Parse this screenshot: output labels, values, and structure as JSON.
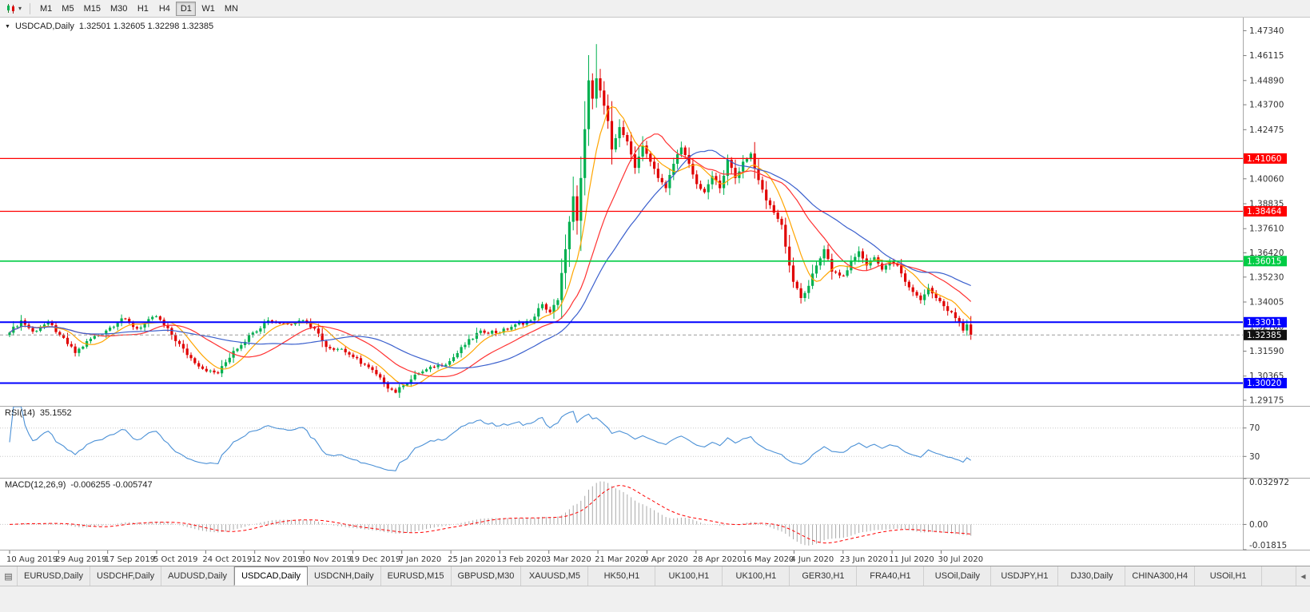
{
  "icons": {
    "chart_menu": "▼",
    "caret_down": "▾",
    "window_list": "▤",
    "tab_scroll_left": "◀",
    "chart_type": "candlestick-chart"
  },
  "toolbar": {
    "periods": [
      "M1",
      "M5",
      "M15",
      "M30",
      "H1",
      "H4",
      "D1",
      "W1",
      "MN"
    ],
    "active_period": "D1"
  },
  "chart": {
    "title": "USDCAD,Daily",
    "ohlc": "1.32501 1.32605 1.32298 1.32385",
    "rsi_label": "RSI(14)",
    "rsi_value": "35.1552",
    "macd_label": "MACD(12,26,9)",
    "macd_value": "-0.006255 -0.005747"
  },
  "levels": [
    {
      "price": 1.4106,
      "label": "1.41060",
      "color": "#ff0000",
      "width": 1.3
    },
    {
      "price": 1.38464,
      "label": "1.38464",
      "color": "#ff0000",
      "width": 1.3
    },
    {
      "price": 1.36015,
      "label": "1.36015",
      "color": "#00cc44",
      "width": 1.6
    },
    {
      "price": 1.33011,
      "label": "1.33011",
      "color": "#0000ff",
      "width": 2
    },
    {
      "price": 1.3002,
      "label": "1.30020",
      "color": "#0000ff",
      "width": 2
    }
  ],
  "current_price": {
    "value": 1.32385,
    "label": "1.32385",
    "color": "#111111"
  },
  "axis": {
    "price_labels": [
      "1.47340",
      "1.46115",
      "1.44890",
      "1.43700",
      "1.42475",
      "1.40060",
      "1.38835",
      "1.37610",
      "1.36420",
      "1.35230",
      "1.34005",
      "1.32780",
      "1.31590",
      "1.30365",
      "1.29175"
    ],
    "rsi_labels": [
      "70",
      "30"
    ],
    "macd_labels": [
      "0.032972",
      "0.00",
      "-0.01815"
    ],
    "dates": [
      "10 Aug 2019",
      "29 Aug 2019",
      "17 Sep 2019",
      "5 Oct 2019",
      "24 Oct 2019",
      "12 Nov 2019",
      "30 Nov 2019",
      "19 Dec 2019",
      "7 Jan 2020",
      "25 Jan 2020",
      "13 Feb 2020",
      "3 Mar 2020",
      "21 Mar 2020",
      "9 Apr 2020",
      "28 Apr 2020",
      "16 May 2020",
      "4 Jun 2020",
      "23 Jun 2020",
      "11 Jul 2020",
      "30 Jul 2020"
    ]
  },
  "chart_data": {
    "type": "candlestick",
    "symbol": "USDCAD",
    "timeframe": "Daily",
    "n_candles": 250,
    "price_range": [
      1.289,
      1.4775
    ],
    "wiggle": 0.0011,
    "close_waypoints": [
      [
        0,
        1.325
      ],
      [
        3,
        1.331
      ],
      [
        6,
        1.3255
      ],
      [
        10,
        1.33
      ],
      [
        13,
        1.324
      ],
      [
        17,
        1.315
      ],
      [
        21,
        1.322
      ],
      [
        25,
        1.326
      ],
      [
        29,
        1.332
      ],
      [
        33,
        1.327
      ],
      [
        38,
        1.333
      ],
      [
        42,
        1.324
      ],
      [
        46,
        1.314
      ],
      [
        51,
        1.306
      ],
      [
        54,
        1.305
      ],
      [
        58,
        1.316
      ],
      [
        63,
        1.325
      ],
      [
        67,
        1.331
      ],
      [
        71,
        1.3295
      ],
      [
        76,
        1.331
      ],
      [
        79,
        1.327
      ],
      [
        82,
        1.318
      ],
      [
        86,
        1.317
      ],
      [
        89,
        1.313
      ],
      [
        93,
        1.308
      ],
      [
        97,
        1.3
      ],
      [
        100,
        1.2955
      ],
      [
        102,
        1.299
      ],
      [
        106,
        1.305
      ],
      [
        110,
        1.308
      ],
      [
        114,
        1.311
      ],
      [
        118,
        1.319
      ],
      [
        122,
        1.326
      ],
      [
        127,
        1.325
      ],
      [
        131,
        1.329
      ],
      [
        135,
        1.331
      ],
      [
        138,
        1.339
      ],
      [
        140,
        1.335
      ],
      [
        142,
        1.341
      ],
      [
        144,
        1.366
      ],
      [
        146,
        1.392
      ],
      [
        147,
        1.38
      ],
      [
        148,
        1.401
      ],
      [
        149,
        1.425
      ],
      [
        150,
        1.449
      ],
      [
        151,
        1.44
      ],
      [
        152,
        1.45
      ],
      [
        153,
        1.444
      ],
      [
        155,
        1.429
      ],
      [
        156,
        1.415
      ],
      [
        158,
        1.426
      ],
      [
        160,
        1.419
      ],
      [
        162,
        1.406
      ],
      [
        164,
        1.417
      ],
      [
        166,
        1.409
      ],
      [
        168,
        1.401
      ],
      [
        170,
        1.396
      ],
      [
        172,
        1.408
      ],
      [
        174,
        1.416
      ],
      [
        176,
        1.408
      ],
      [
        178,
        1.398
      ],
      [
        180,
        1.394
      ],
      [
        182,
        1.402
      ],
      [
        184,
        1.396
      ],
      [
        186,
        1.41
      ],
      [
        188,
        1.401
      ],
      [
        190,
        1.409
      ],
      [
        192,
        1.413
      ],
      [
        194,
        1.4
      ],
      [
        196,
        1.39
      ],
      [
        198,
        1.384
      ],
      [
        200,
        1.378
      ],
      [
        202,
        1.358
      ],
      [
        203,
        1.35
      ],
      [
        205,
        1.342
      ],
      [
        207,
        1.348
      ],
      [
        209,
        1.358
      ],
      [
        211,
        1.366
      ],
      [
        213,
        1.355
      ],
      [
        216,
        1.353
      ],
      [
        218,
        1.36
      ],
      [
        220,
        1.365
      ],
      [
        222,
        1.358
      ],
      [
        224,
        1.362
      ],
      [
        226,
        1.356
      ],
      [
        228,
        1.36
      ],
      [
        230,
        1.358
      ],
      [
        232,
        1.35
      ],
      [
        234,
        1.345
      ],
      [
        236,
        1.341
      ],
      [
        238,
        1.347
      ],
      [
        240,
        1.342
      ],
      [
        242,
        1.338
      ],
      [
        244,
        1.335
      ],
      [
        246,
        1.33
      ],
      [
        247,
        1.326
      ],
      [
        248,
        1.329
      ],
      [
        249,
        1.32385
      ]
    ],
    "high_overrides": [
      [
        152,
        1.4668
      ]
    ],
    "low_overrides": [
      [
        100,
        1.2952
      ]
    ],
    "ma": [
      {
        "period": 8,
        "color": "#ffa500"
      },
      {
        "period": 20,
        "color": "#ff3232"
      },
      {
        "period": 34,
        "color": "#3a5fcd"
      }
    ],
    "rsi": {
      "period": 14,
      "levels": [
        70,
        30
      ],
      "color": "#4a90d6"
    },
    "macd": {
      "fast": 12,
      "slow": 26,
      "signal": 9,
      "range": [
        -0.01815,
        0.032972
      ]
    },
    "colors": {
      "candle_up": "#00b050",
      "candle_down": "#e00000",
      "macd_histogram": "#a9a9a9",
      "macd_signal": "#ff0000"
    }
  },
  "tabs": {
    "items": [
      "EURUSD,Daily",
      "USDCHF,Daily",
      "AUDUSD,Daily",
      "USDCAD,Daily",
      "USDCNH,Daily",
      "EURUSD,M15",
      "GBPUSD,M30",
      "XAUUSD,M5",
      "HK50,H1",
      "UK100,H1",
      "UK100,H1",
      "GER30,H1",
      "FRA40,H1",
      "USOil,Daily",
      "USDJPY,H1",
      "DJ30,Daily",
      "CHINA300,H4",
      "USOil,H1"
    ],
    "active": "USDCAD,Daily"
  }
}
